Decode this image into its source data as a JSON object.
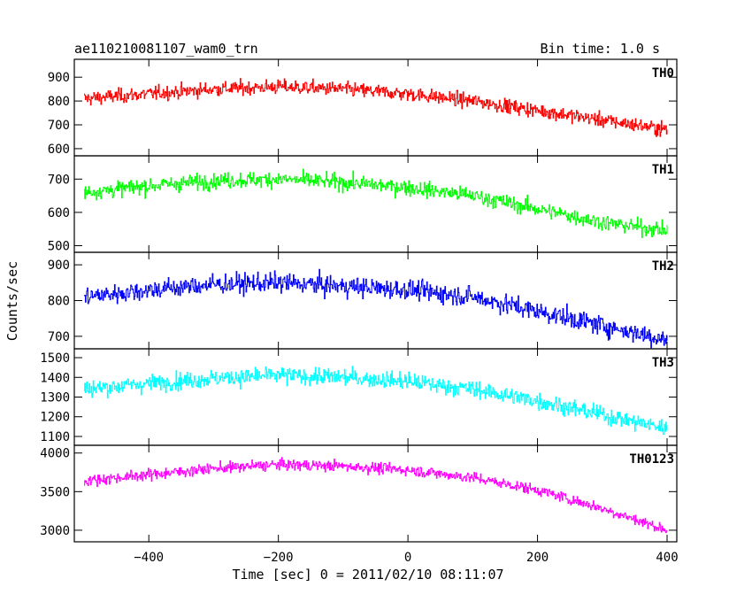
{
  "chart_data": {
    "type": "line",
    "title": "ae110210081107_wam0_trn",
    "bin_time_label": "Bin time: 1.0 s",
    "xlabel": "Time [sec] 0 = 2011/02/10 08:11:07",
    "ylabel": "Counts/sec",
    "xlim": [
      -515,
      415
    ],
    "xticks": [
      -400,
      -200,
      0,
      200,
      400
    ],
    "grid": false,
    "panels": [
      {
        "name": "TH0",
        "color": "#ff0000",
        "ylim": [
          570,
          975
        ],
        "yticks": [
          600,
          700,
          800,
          900
        ],
        "trend": {
          "x": [
            -500,
            -400,
            -300,
            -200,
            -100,
            0,
            100,
            200,
            300,
            400
          ],
          "y": [
            810,
            830,
            850,
            860,
            850,
            830,
            800,
            760,
            720,
            680
          ]
        },
        "noise": 38
      },
      {
        "name": "TH1",
        "color": "#00ff00",
        "ylim": [
          480,
          770
        ],
        "yticks": [
          500,
          600,
          700
        ],
        "trend": {
          "x": [
            -500,
            -400,
            -300,
            -200,
            -100,
            0,
            100,
            200,
            300,
            400
          ],
          "y": [
            660,
            680,
            695,
            700,
            690,
            675,
            650,
            610,
            570,
            545
          ]
        },
        "noise": 30
      },
      {
        "name": "TH2",
        "color": "#0000ff",
        "ylim": [
          665,
          935
        ],
        "yticks": [
          700,
          800,
          900
        ],
        "trend": {
          "x": [
            -500,
            -400,
            -300,
            -200,
            -100,
            0,
            100,
            200,
            300,
            400
          ],
          "y": [
            810,
            830,
            845,
            850,
            840,
            830,
            810,
            770,
            730,
            690
          ]
        },
        "noise": 35
      },
      {
        "name": "TH3",
        "color": "#00ffff",
        "ylim": [
          1055,
          1545
        ],
        "yticks": [
          1100,
          1200,
          1300,
          1400,
          1500
        ],
        "trend": {
          "x": [
            -500,
            -400,
            -300,
            -200,
            -100,
            0,
            100,
            200,
            300,
            400
          ],
          "y": [
            1340,
            1370,
            1395,
            1410,
            1400,
            1380,
            1340,
            1280,
            1210,
            1140
          ]
        },
        "noise": 55
      },
      {
        "name": "TH0123",
        "color": "#ff00ff",
        "ylim": [
          2850,
          4100
        ],
        "yticks": [
          3000,
          3500,
          4000
        ],
        "trend": {
          "x": [
            -500,
            -400,
            -300,
            -200,
            -100,
            0,
            100,
            200,
            300,
            400
          ],
          "y": [
            3640,
            3720,
            3800,
            3850,
            3830,
            3780,
            3680,
            3520,
            3280,
            3000
          ]
        },
        "noise": 90
      }
    ]
  }
}
